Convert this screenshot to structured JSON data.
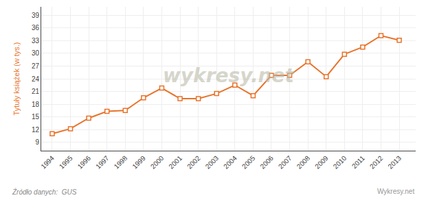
{
  "chart_data": {
    "type": "line",
    "x": [
      1994,
      1995,
      1996,
      1997,
      1998,
      1999,
      2000,
      2001,
      2002,
      2003,
      2004,
      2005,
      2006,
      2007,
      2008,
      2009,
      2010,
      2011,
      2012,
      2013
    ],
    "values": [
      11.0,
      12.2,
      14.7,
      16.3,
      16.5,
      19.5,
      21.8,
      19.3,
      19.3,
      20.5,
      22.5,
      20.0,
      24.8,
      24.8,
      28.0,
      24.5,
      29.8,
      31.5,
      34.2,
      33.1
    ],
    "color": "#E8732A",
    "marker": "square",
    "ylabel": "Tytuły książek (w tys.)",
    "xlim": [
      1993.4,
      2013.9
    ],
    "xticks": [
      1994,
      1995,
      1996,
      1997,
      1998,
      1999,
      2000,
      2001,
      2002,
      2003,
      2004,
      2005,
      2006,
      2007,
      2008,
      2009,
      2010,
      2011,
      2012,
      2013
    ],
    "ylim": [
      7,
      41
    ],
    "yticks": [
      9,
      12,
      15,
      18,
      21,
      24,
      27,
      30,
      33,
      36,
      39
    ],
    "grid": true,
    "annotations": [
      "wykresy.net",
      "Źródło danych:  GUS",
      "Wykresy.net"
    ]
  }
}
